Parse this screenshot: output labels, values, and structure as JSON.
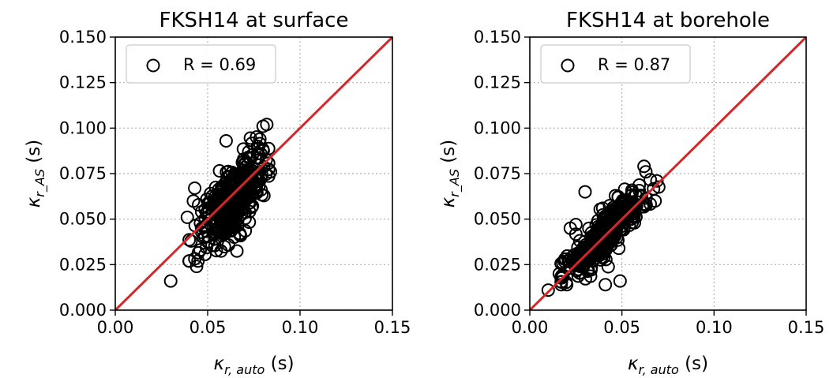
{
  "chart_data": [
    {
      "type": "scatter",
      "title": "FKSH14 at surface",
      "xlabel": {
        "base": "κ",
        "sub": "r, auto",
        "unit": "(s)"
      },
      "ylabel": {
        "base": "κ",
        "sub": "r_AS",
        "unit": "(s)"
      },
      "xlim": [
        0.0,
        0.15
      ],
      "ylim": [
        0.0,
        0.15
      ],
      "xticks": [
        "0.00",
        "0.05",
        "0.10",
        "0.15"
      ],
      "yticks": [
        "0.000",
        "0.025",
        "0.050",
        "0.075",
        "0.100",
        "0.125",
        "0.150"
      ],
      "grid": true,
      "legend": {
        "placement": "upper-left",
        "label": "R = 0.69"
      },
      "reference_line": {
        "from": [
          0,
          0
        ],
        "to": [
          0.15,
          0.15
        ],
        "color": "#d62728"
      },
      "marker": {
        "shape": "circle",
        "fill": "none",
        "edge": "#000000"
      },
      "cloud": {
        "center": [
          0.064,
          0.061
        ],
        "sd": [
          0.0085,
          0.0125
        ],
        "r": 0.69,
        "count": 420,
        "xclip": [
          0.04,
          0.083
        ],
        "yclip": [
          0.027,
          0.102
        ]
      },
      "points": [
        [
          0.03,
          0.016
        ],
        [
          0.044,
          0.024
        ],
        [
          0.043,
          0.067
        ],
        [
          0.041,
          0.038
        ],
        [
          0.082,
          0.102
        ],
        [
          0.08,
          0.101
        ],
        [
          0.084,
          0.076
        ],
        [
          0.077,
          0.09
        ],
        [
          0.06,
          0.093
        ],
        [
          0.039,
          0.051
        ]
      ]
    },
    {
      "type": "scatter",
      "title": "FKSH14 at borehole",
      "xlabel": {
        "base": "κ",
        "sub": "r, auto",
        "unit": "(s)"
      },
      "ylabel": {
        "base": "κ",
        "sub": "r_AS",
        "unit": "(s)"
      },
      "xlim": [
        0.0,
        0.15
      ],
      "ylim": [
        0.0,
        0.15
      ],
      "xticks": [
        "0.00",
        "0.05",
        "0.10",
        "0.15"
      ],
      "yticks": [
        "0.000",
        "0.025",
        "0.050",
        "0.075",
        "0.100",
        "0.125",
        "0.150"
      ],
      "grid": true,
      "legend": {
        "placement": "upper-left",
        "label": "R = 0.87"
      },
      "reference_line": {
        "from": [
          0,
          0
        ],
        "to": [
          0.15,
          0.15
        ],
        "color": "#d62728"
      },
      "marker": {
        "shape": "circle",
        "fill": "none",
        "edge": "#000000"
      },
      "cloud": {
        "center": [
          0.04,
          0.041
        ],
        "sd": [
          0.01,
          0.0115
        ],
        "r": 0.87,
        "count": 420,
        "xclip": [
          0.017,
          0.07
        ],
        "yclip": [
          0.014,
          0.072
        ]
      },
      "points": [
        [
          0.01,
          0.011
        ],
        [
          0.016,
          0.02
        ],
        [
          0.03,
          0.065
        ],
        [
          0.062,
          0.079
        ],
        [
          0.063,
          0.076
        ],
        [
          0.041,
          0.014
        ],
        [
          0.069,
          0.071
        ],
        [
          0.068,
          0.06
        ],
        [
          0.022,
          0.045
        ],
        [
          0.025,
          0.047
        ],
        [
          0.049,
          0.016
        ],
        [
          0.019,
          0.028
        ]
      ]
    }
  ]
}
